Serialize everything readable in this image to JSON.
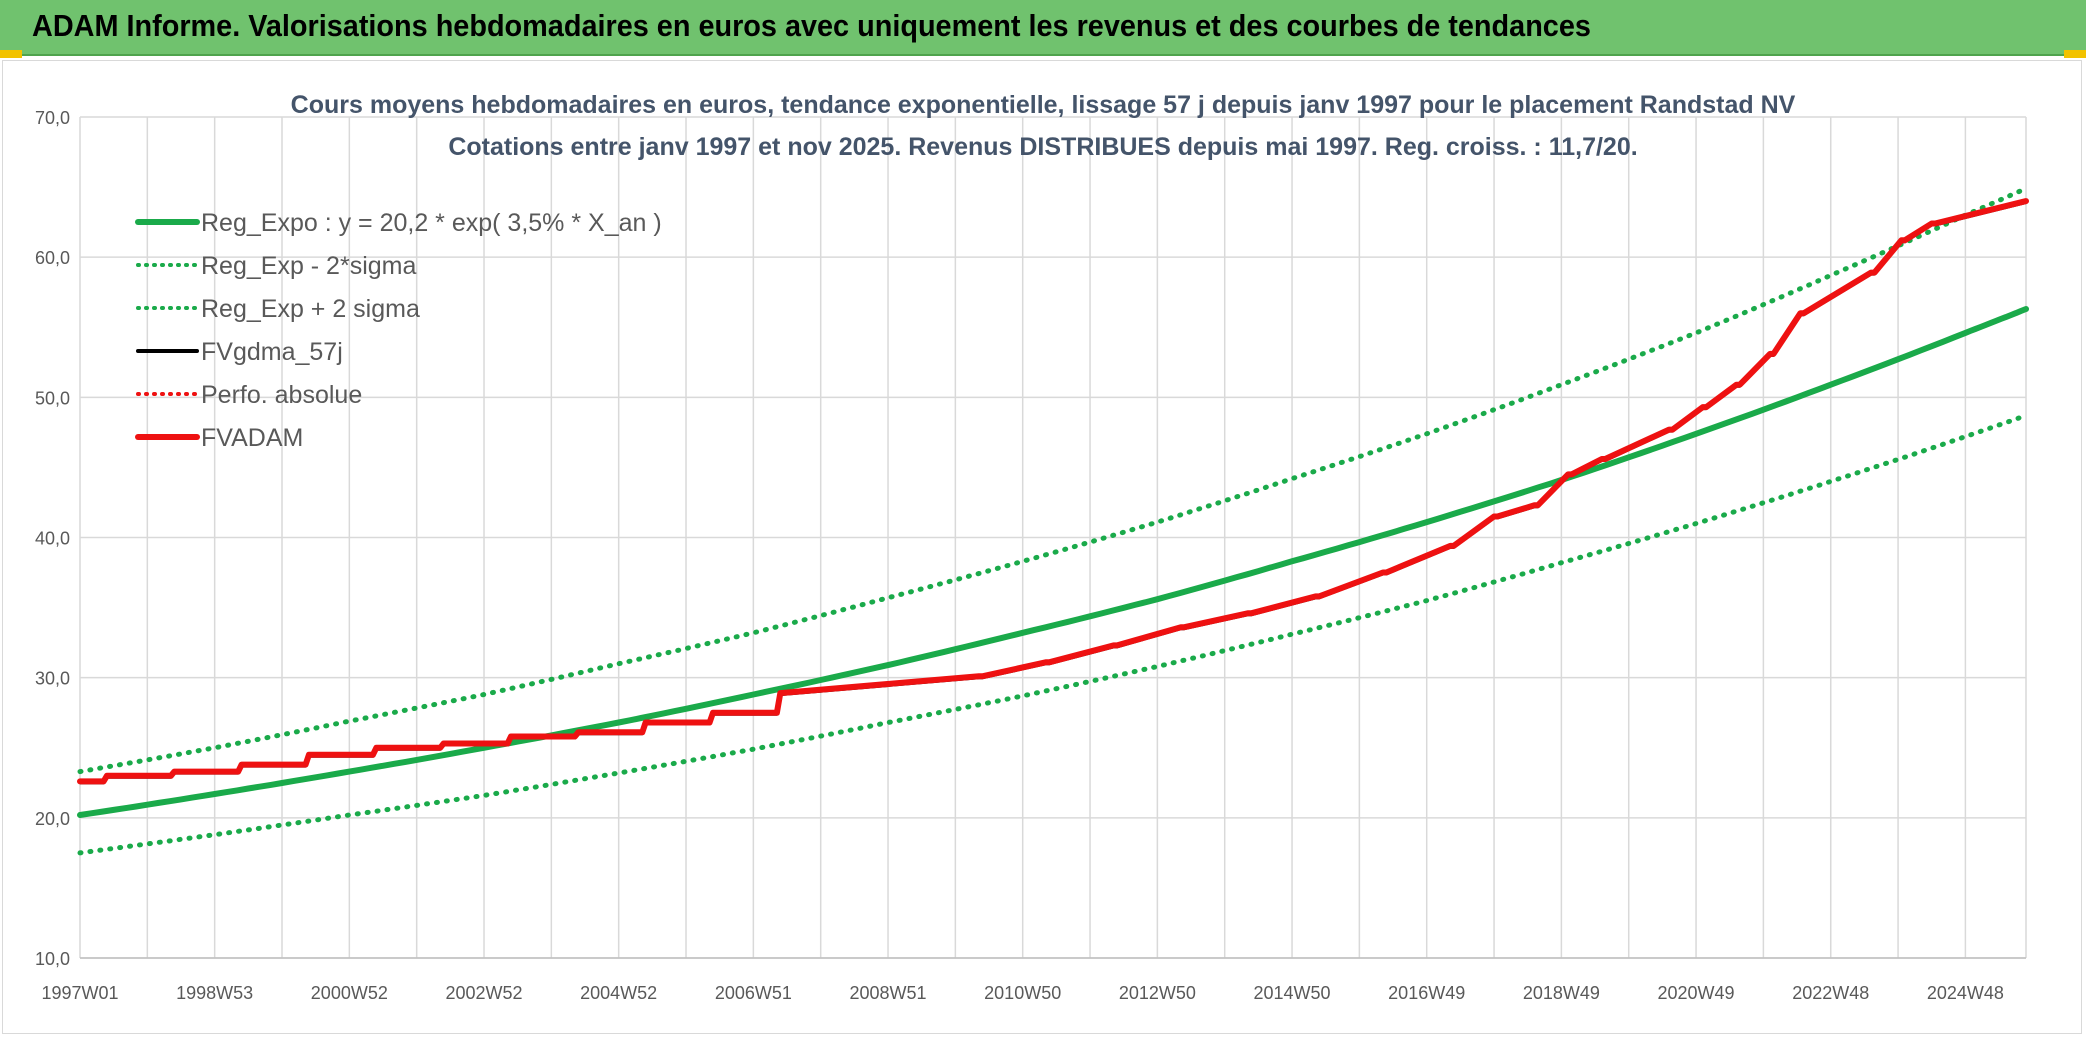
{
  "header": {
    "title": "ADAM Informe. Valorisations hebdomadaires en euros avec uniquement les revenus et des courbes de tendances"
  },
  "colors": {
    "header_bg": "#70c26e",
    "reg_expo": "#1aaa4a",
    "fvgdma": "#000000",
    "fvadam": "#ee1111",
    "perfo": "#ee1111",
    "grid": "#d9d9d9"
  },
  "chart_data": {
    "type": "line",
    "title": "Cours moyens hebdomadaires en euros, tendance exponentielle, lissage 57 j depuis janv 1997 pour le placement Randstad NV",
    "subtitle": "Cotations entre janv 1997 et nov 2025. Revenus DISTRIBUES depuis mai 1997. Reg. croiss. : 11,7/20.",
    "xlabel": "",
    "ylabel": "",
    "ylim": [
      10,
      70
    ],
    "yticks": [
      "10,0",
      "20,0",
      "30,0",
      "40,0",
      "50,0",
      "60,0",
      "70,0"
    ],
    "xlim_years": [
      1997.0,
      2025.9
    ],
    "xticks": [
      "1997W01",
      "1998W53",
      "2000W52",
      "2002W52",
      "2004W52",
      "2006W51",
      "2008W51",
      "2010W50",
      "2012W50",
      "2014W50",
      "2016W49",
      "2018W49",
      "2020W49",
      "2022W48",
      "2024W48"
    ],
    "xtick_years": [
      1997.0,
      1999.0,
      2001.0,
      2003.0,
      2005.0,
      2007.0,
      2009.0,
      2011.0,
      2013.0,
      2015.0,
      2017.0,
      2019.0,
      2021.0,
      2023.0,
      2025.0
    ],
    "grid": true,
    "legend_position": "top-left",
    "legend": [
      {
        "label": "Reg_Expo : y = 20,2 * exp( 3,5% *  X_an )",
        "style": "solid-thick",
        "color": "#1aaa4a"
      },
      {
        "label": "Reg_Exp - 2*sigma",
        "style": "dotted",
        "color": "#1aaa4a"
      },
      {
        "label": "Reg_Exp + 2 sigma",
        "style": "dotted",
        "color": "#1aaa4a"
      },
      {
        "label": "FVgdma_57j",
        "style": "solid",
        "color": "#000000"
      },
      {
        "label": "Perfo. absolue",
        "style": "dotted",
        "color": "#ee1111"
      },
      {
        "label": "FVADAM",
        "style": "solid-thick",
        "color": "#ee1111"
      }
    ],
    "series": [
      {
        "name": "Reg_Expo : y = 20,2 * exp( 3,5% *  X_an )",
        "x": [
          1997.0,
          1999.0,
          2001.0,
          2003.0,
          2005.0,
          2007.0,
          2009.0,
          2011.0,
          2013.0,
          2015.0,
          2017.0,
          2019.0,
          2021.0,
          2023.0,
          2025.0,
          2025.9
        ],
        "y": [
          20.2,
          21.7,
          23.3,
          25.0,
          26.8,
          28.8,
          30.9,
          33.2,
          35.6,
          38.3,
          41.1,
          44.1,
          47.4,
          50.9,
          54.6,
          56.3
        ]
      },
      {
        "name": "Reg_Exp - 2*sigma",
        "x": [
          1997.0,
          1999.0,
          2001.0,
          2003.0,
          2005.0,
          2007.0,
          2009.0,
          2011.0,
          2013.0,
          2015.0,
          2017.0,
          2019.0,
          2021.0,
          2023.0,
          2025.0,
          2025.9
        ],
        "y": [
          17.5,
          18.8,
          20.2,
          21.6,
          23.2,
          24.9,
          26.8,
          28.7,
          30.8,
          33.1,
          35.5,
          38.2,
          41.0,
          44.0,
          47.2,
          48.7
        ]
      },
      {
        "name": "Reg_Exp + 2 sigma",
        "x": [
          1997.0,
          1999.0,
          2001.0,
          2003.0,
          2005.0,
          2007.0,
          2009.0,
          2011.0,
          2013.0,
          2015.0,
          2017.0,
          2019.0,
          2021.0,
          2023.0,
          2025.0,
          2025.9
        ],
        "y": [
          23.3,
          25.0,
          26.9,
          28.8,
          31.0,
          33.2,
          35.7,
          38.3,
          41.1,
          44.2,
          47.4,
          50.9,
          54.6,
          58.7,
          63.0,
          64.9
        ]
      },
      {
        "name": "FVADAM",
        "x": [
          1997.0,
          1997.35,
          1997.4,
          1998.35,
          1998.4,
          1999.35,
          1999.4,
          2000.35,
          2000.4,
          2001.35,
          2001.4,
          2002.35,
          2002.4,
          2003.35,
          2003.4,
          2004.35,
          2004.4,
          2005.35,
          2005.4,
          2006.35,
          2006.4,
          2007.35,
          2007.4,
          2010.35,
          2010.4,
          2011.35,
          2011.4,
          2012.35,
          2012.4,
          2013.35,
          2013.4,
          2014.35,
          2014.4,
          2015.35,
          2015.4,
          2016.35,
          2016.4,
          2017.35,
          2017.4,
          2018.0,
          2018.05,
          2018.6,
          2018.65,
          2019.1,
          2019.15,
          2019.6,
          2019.65,
          2020.6,
          2020.65,
          2021.1,
          2021.15,
          2021.6,
          2021.65,
          2022.1,
          2022.15,
          2022.55,
          2022.6,
          2023.6,
          2023.65,
          2024.05,
          2024.1,
          2024.5,
          2024.55,
          2025.9
        ],
        "y": [
          22.6,
          22.6,
          23.0,
          23.0,
          23.3,
          23.3,
          23.8,
          23.8,
          24.5,
          24.5,
          25.0,
          25.0,
          25.3,
          25.3,
          25.8,
          25.8,
          26.1,
          26.1,
          26.8,
          26.8,
          27.5,
          27.5,
          28.9,
          30.1,
          30.1,
          31.1,
          31.1,
          32.3,
          32.3,
          33.6,
          33.6,
          34.6,
          34.6,
          35.8,
          35.8,
          37.5,
          37.5,
          39.4,
          39.4,
          41.5,
          41.5,
          42.3,
          42.3,
          44.5,
          44.5,
          45.6,
          45.6,
          47.7,
          47.7,
          49.3,
          49.3,
          50.9,
          50.9,
          53.1,
          53.1,
          56.0,
          56.0,
          58.9,
          58.9,
          61.2,
          61.2,
          62.4,
          62.4,
          64.0
        ]
      }
    ],
    "annotations": []
  }
}
